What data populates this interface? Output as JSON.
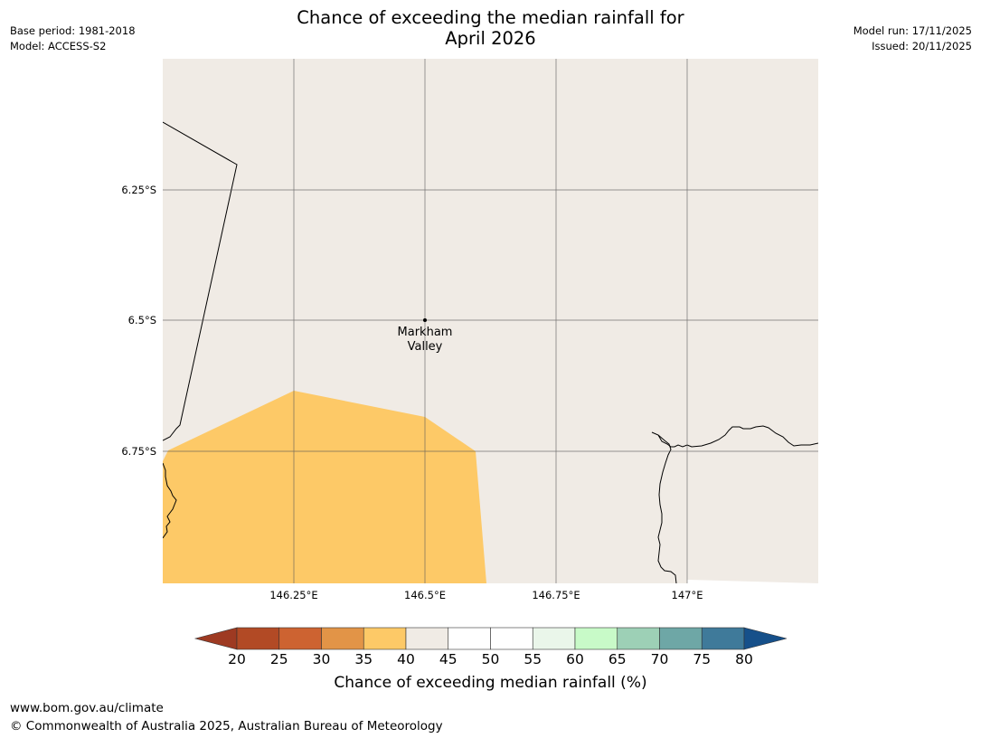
{
  "header": {
    "title_line1": "Chance of exceeding the median rainfall for",
    "title_line2": "April 2026",
    "base_period": "Base period: 1981-2018",
    "model": "Model: ACCESS-S2",
    "model_run": "Model run: 17/11/2025",
    "issued": "Issued: 20/11/2025"
  },
  "map": {
    "background_color": "#f0ebe5",
    "latitude_labels": [
      "6.25°S",
      "6.5°S",
      "6.75°S"
    ],
    "longitude_labels": [
      "146.25°E",
      "146.5°E",
      "146.75°E",
      "147°E"
    ],
    "place": {
      "name_line1": "Markham",
      "name_line2": "Valley"
    },
    "probability_region": {
      "category": "35-40",
      "color": "#fdc967"
    }
  },
  "legend": {
    "title": "Chance of exceeding median rainfall (%)",
    "ticks": [
      "20",
      "25",
      "30",
      "35",
      "40",
      "45",
      "50",
      "55",
      "60",
      "65",
      "70",
      "75",
      "80"
    ],
    "low_extend_color": "#9e3a22",
    "high_extend_color": "#16508a",
    "bin_colors": [
      "#b24a25",
      "#cd6331",
      "#e29447",
      "#fdc967",
      "#f0ebe5",
      "#ffffff",
      "#ffffff",
      "#eaf6ea",
      "#c8fac8",
      "#9dd0b6",
      "#6ea7a6",
      "#3f7a9a"
    ]
  },
  "footer": {
    "url": "www.bom.gov.au/climate",
    "copyright": "© Commonwealth of Australia 2025, Australian Bureau of Meteorology"
  }
}
